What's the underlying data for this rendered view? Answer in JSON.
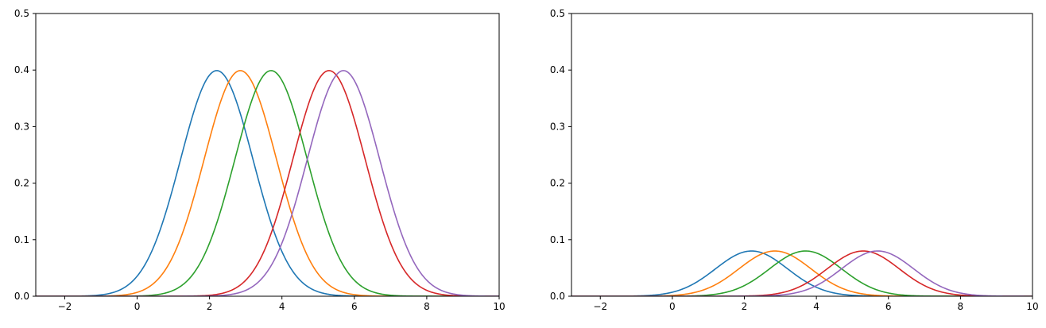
{
  "chart_data": [
    {
      "type": "line",
      "title": "",
      "xlabel": "",
      "ylabel": "",
      "xlim": [
        -2.8,
        10
      ],
      "ylim": [
        0,
        0.5
      ],
      "xticks": [
        -2,
        0,
        2,
        4,
        6,
        8,
        10
      ],
      "xtick_labels": [
        "−2",
        "0",
        "2",
        "4",
        "6",
        "8",
        "10"
      ],
      "yticks": [
        0.0,
        0.1,
        0.2,
        0.3,
        0.4,
        0.5
      ],
      "ytick_labels": [
        "0.0",
        "0.1",
        "0.2",
        "0.3",
        "0.4",
        "0.5"
      ],
      "grid": false,
      "legend": false,
      "series": [
        {
          "color": "#1f77b4",
          "mean": 2.2,
          "sd": 1.0,
          "peak": 0.399
        },
        {
          "color": "#ff7f0e",
          "mean": 2.85,
          "sd": 1.0,
          "peak": 0.399
        },
        {
          "color": "#2ca02c",
          "mean": 3.7,
          "sd": 1.0,
          "peak": 0.399
        },
        {
          "color": "#d62728",
          "mean": 5.3,
          "sd": 1.0,
          "peak": 0.399
        },
        {
          "color": "#9467bd",
          "mean": 5.7,
          "sd": 1.0,
          "peak": 0.399
        }
      ]
    },
    {
      "type": "line",
      "title": "",
      "xlabel": "",
      "ylabel": "",
      "xlim": [
        -2.8,
        10
      ],
      "ylim": [
        0,
        0.5
      ],
      "xticks": [
        -2,
        0,
        2,
        4,
        6,
        8,
        10
      ],
      "xtick_labels": [
        "−2",
        "0",
        "2",
        "4",
        "6",
        "8",
        "10"
      ],
      "yticks": [
        0.0,
        0.1,
        0.2,
        0.3,
        0.4,
        0.5
      ],
      "ytick_labels": [
        "0.0",
        "0.1",
        "0.2",
        "0.3",
        "0.4",
        "0.5"
      ],
      "grid": false,
      "legend": false,
      "series": [
        {
          "color": "#1f77b4",
          "mean": 2.2,
          "sd": 1.0,
          "peak": 0.08
        },
        {
          "color": "#ff7f0e",
          "mean": 2.85,
          "sd": 1.0,
          "peak": 0.08
        },
        {
          "color": "#2ca02c",
          "mean": 3.7,
          "sd": 1.0,
          "peak": 0.08
        },
        {
          "color": "#d62728",
          "mean": 5.3,
          "sd": 1.0,
          "peak": 0.08
        },
        {
          "color": "#9467bd",
          "mean": 5.7,
          "sd": 1.0,
          "peak": 0.08
        }
      ]
    }
  ]
}
